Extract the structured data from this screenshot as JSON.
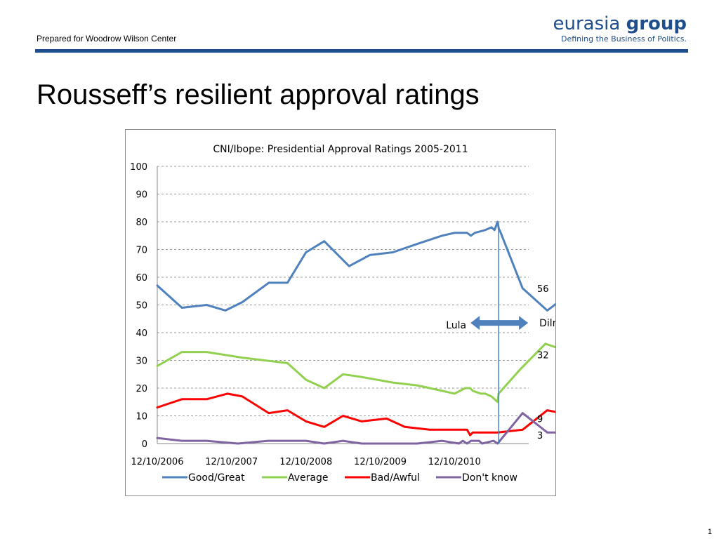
{
  "header": {
    "prepared_for": "Prepared for Woodrow Wilson Center",
    "logo_word1": "eurasia",
    "logo_word2": "group",
    "logo_tagline": "Defining the Business of Politics.",
    "brand_color": "#1f4e8c"
  },
  "slide": {
    "title": "Rousseff’s resilient approval ratings",
    "page_number": "1"
  },
  "chart_data": {
    "type": "line",
    "title": "CNI/Ibope: Presidential Approval Ratings 2005-2011",
    "xlabel": "",
    "ylabel": "",
    "ylim": [
      0,
      100
    ],
    "yticks": [
      0,
      10,
      20,
      30,
      40,
      50,
      60,
      70,
      80,
      90,
      100
    ],
    "x_date_range": [
      "2006-12-10",
      "2011-12-10"
    ],
    "x_tick_labels": [
      "12/10/2006",
      "12/10/2007",
      "12/10/2008",
      "12/10/2009",
      "12/10/2010"
    ],
    "x_tick_dates": [
      "2006-12-10",
      "2007-12-10",
      "2008-12-10",
      "2009-12-10",
      "2010-12-10"
    ],
    "grid": "horizontal dashed",
    "legend_position": "bottom",
    "series": [
      {
        "name": "Good/Great",
        "color": "#4f81bd",
        "end_label": "56",
        "points": [
          [
            "2006-12-10",
            57
          ],
          [
            "2007-04-10",
            49
          ],
          [
            "2007-08-10",
            50
          ],
          [
            "2007-11-10",
            48
          ],
          [
            "2008-02-01",
            51
          ],
          [
            "2008-06-10",
            58
          ],
          [
            "2008-09-10",
            58
          ],
          [
            "2008-12-10",
            69
          ],
          [
            "2009-03-10",
            73
          ],
          [
            "2009-07-10",
            64
          ],
          [
            "2009-10-20",
            68
          ],
          [
            "2010-02-10",
            69
          ],
          [
            "2010-06-10",
            72
          ],
          [
            "2010-10-10",
            75
          ],
          [
            "2010-12-10",
            76
          ],
          [
            "2011-02-10",
            76
          ],
          [
            "2011-03-01",
            75
          ],
          [
            "2011-03-20",
            76
          ],
          [
            "2011-05-10",
            77
          ],
          [
            "2011-06-10",
            78
          ],
          [
            "2011-06-25",
            77
          ],
          [
            "2011-07-10",
            80
          ],
          [
            "2011-07-17",
            77
          ],
          [
            "2011-07-20",
            77
          ],
          [
            "2011-11-10",
            56
          ],
          [
            "2012-03-10",
            48
          ],
          [
            "2012-08-01",
            56
          ]
        ]
      },
      {
        "name": "Average",
        "color": "#92d050",
        "end_label": "32",
        "points": [
          [
            "2006-12-10",
            28
          ],
          [
            "2007-04-10",
            33
          ],
          [
            "2007-08-10",
            33
          ],
          [
            "2008-02-01",
            31
          ],
          [
            "2008-09-10",
            29
          ],
          [
            "2008-12-10",
            23
          ],
          [
            "2009-03-10",
            20
          ],
          [
            "2009-06-10",
            25
          ],
          [
            "2009-09-10",
            24
          ],
          [
            "2010-02-10",
            22
          ],
          [
            "2010-06-10",
            21
          ],
          [
            "2010-10-10",
            19
          ],
          [
            "2010-12-10",
            18
          ],
          [
            "2011-02-01",
            20
          ],
          [
            "2011-02-25",
            20
          ],
          [
            "2011-03-10",
            19
          ],
          [
            "2011-04-20",
            18
          ],
          [
            "2011-05-10",
            18
          ],
          [
            "2011-06-10",
            17
          ],
          [
            "2011-07-10",
            15
          ],
          [
            "2011-07-15",
            18
          ],
          [
            "2011-11-01",
            27
          ],
          [
            "2012-03-01",
            36
          ],
          [
            "2012-05-20",
            34
          ],
          [
            "2012-08-01",
            32
          ]
        ]
      },
      {
        "name": "Bad/Awful",
        "color": "#ff0000",
        "end_label": "9",
        "points": [
          [
            "2006-12-10",
            13
          ],
          [
            "2007-04-10",
            16
          ],
          [
            "2007-08-10",
            16
          ],
          [
            "2007-11-20",
            18
          ],
          [
            "2008-02-01",
            17
          ],
          [
            "2008-06-10",
            11
          ],
          [
            "2008-09-10",
            12
          ],
          [
            "2008-12-10",
            8
          ],
          [
            "2009-03-10",
            6
          ],
          [
            "2009-06-10",
            10
          ],
          [
            "2009-09-10",
            8
          ],
          [
            "2010-01-10",
            9
          ],
          [
            "2010-04-10",
            6
          ],
          [
            "2010-08-10",
            5
          ],
          [
            "2010-12-10",
            5
          ],
          [
            "2011-01-10",
            5
          ],
          [
            "2011-02-10",
            5
          ],
          [
            "2011-02-25",
            3
          ],
          [
            "2011-03-10",
            4
          ],
          [
            "2011-07-10",
            4
          ],
          [
            "2011-11-10",
            5
          ],
          [
            "2012-03-10",
            12
          ],
          [
            "2012-05-20",
            11
          ],
          [
            "2012-08-01",
            9
          ]
        ]
      },
      {
        "name": "Don't know",
        "color": "#8064a2",
        "end_label": "3",
        "points": [
          [
            "2006-12-10",
            2
          ],
          [
            "2007-04-10",
            1
          ],
          [
            "2007-08-10",
            1
          ],
          [
            "2008-01-10",
            0
          ],
          [
            "2008-06-10",
            1
          ],
          [
            "2008-09-10",
            1
          ],
          [
            "2008-12-10",
            1
          ],
          [
            "2009-03-10",
            0
          ],
          [
            "2009-06-10",
            1
          ],
          [
            "2009-09-10",
            0
          ],
          [
            "2010-06-10",
            0
          ],
          [
            "2010-10-10",
            1
          ],
          [
            "2011-01-01",
            0
          ],
          [
            "2011-01-20",
            1
          ],
          [
            "2011-02-10",
            0
          ],
          [
            "2011-03-01",
            1
          ],
          [
            "2011-04-10",
            1
          ],
          [
            "2011-04-25",
            0
          ],
          [
            "2011-06-20",
            1
          ],
          [
            "2011-07-10",
            0
          ],
          [
            "2011-11-10",
            11
          ],
          [
            "2012-03-10",
            4
          ],
          [
            "2012-05-20",
            4
          ],
          [
            "2012-08-01",
            3
          ]
        ]
      }
    ],
    "annotations": {
      "transition_date": "2011-07-15",
      "left_label": "Lula",
      "right_label": "Dilma"
    }
  }
}
